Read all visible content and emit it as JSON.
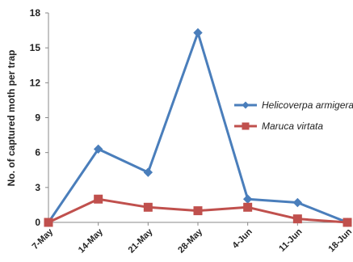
{
  "chart_data": {
    "type": "line",
    "categories": [
      "7-May",
      "14-May",
      "21-May",
      "28-May",
      "4-Jun",
      "11-Jun",
      "18-Jun"
    ],
    "series": [
      {
        "name": "Helicoverpa armigera",
        "values": [
          0,
          6.3,
          4.3,
          16.3,
          2.0,
          1.7,
          0
        ],
        "color": "#4a7ebb",
        "marker": "diamond"
      },
      {
        "name": "Maruca virtata",
        "values": [
          0,
          2.0,
          1.3,
          1.0,
          1.3,
          0.3,
          0
        ],
        "color": "#c0504d",
        "marker": "square"
      }
    ],
    "ylabel": "No. of captured moth per trap",
    "ylim": [
      0,
      18
    ],
    "yticks": [
      0,
      3,
      6,
      9,
      12,
      15,
      18
    ],
    "grid": false,
    "legend_position": "right"
  }
}
